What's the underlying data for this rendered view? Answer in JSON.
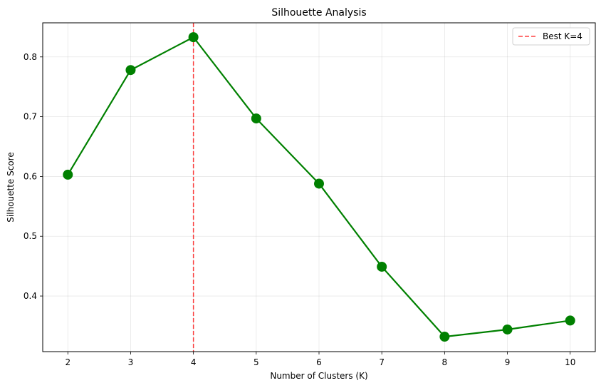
{
  "chart_data": {
    "type": "line",
    "title": "Silhouette Analysis",
    "xlabel": "Number of Clusters (K)",
    "ylabel": "Silhouette Score",
    "x": [
      2,
      3,
      4,
      5,
      6,
      7,
      8,
      9,
      10
    ],
    "series": [
      {
        "values": [
          0.603,
          0.778,
          0.833,
          0.697,
          0.588,
          0.449,
          0.332,
          0.344,
          0.359
        ],
        "color": "#008000"
      }
    ],
    "xlim": [
      1.6,
      10.4
    ],
    "ylim": [
      0.307,
      0.857
    ],
    "xticks": [
      2,
      3,
      4,
      5,
      6,
      7,
      8,
      9,
      10
    ],
    "yticks": [
      0.4,
      0.5,
      0.6,
      0.7,
      0.8
    ],
    "grid": true,
    "legend_position": "top-right",
    "reference_line": {
      "orientation": "vertical",
      "x": 4,
      "label": "Best K=4",
      "color": "#ff0000",
      "style": "dashed"
    }
  }
}
